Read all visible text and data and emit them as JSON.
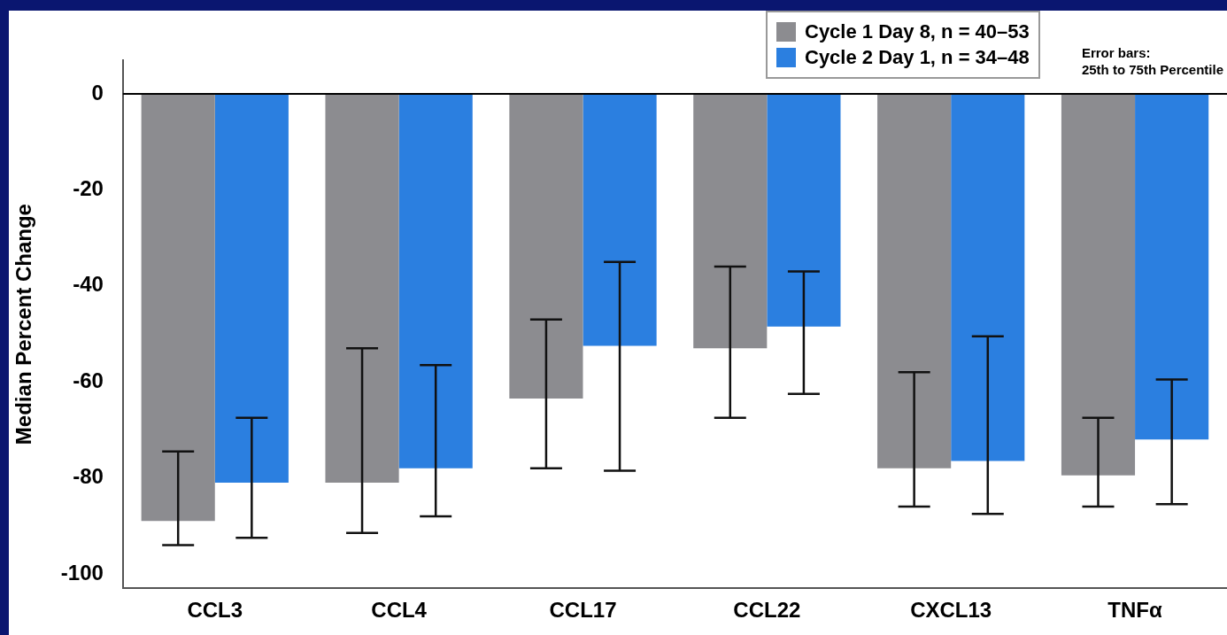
{
  "chart_data": {
    "type": "bar",
    "ylabel": "Median Percent Change",
    "categories": [
      "CCL3",
      "CCL4",
      "CCL17",
      "CCL22",
      "CXCL13",
      "TNFα"
    ],
    "series": [
      {
        "name": "Cycle 1 Day 8, n = 40–53",
        "color": "#8c8c90",
        "values": [
          -89,
          -81,
          -63.5,
          -53,
          -78,
          -79.5
        ],
        "errors": [
          [
            -94,
            -74.5
          ],
          [
            -91.5,
            -53
          ],
          [
            -78,
            -47
          ],
          [
            -67.5,
            -36
          ],
          [
            -86,
            -58
          ],
          [
            -86,
            -67.5
          ]
        ]
      },
      {
        "name": "Cycle 2 Day 1, n = 34–48",
        "color": "#2b7fe0",
        "values": [
          -81,
          -78,
          -52.5,
          -48.5,
          -76.5,
          -72
        ],
        "errors": [
          [
            -92.5,
            -67.5
          ],
          [
            -88,
            -56.5
          ],
          [
            -78.5,
            -35
          ],
          [
            -62.5,
            -37
          ],
          [
            -87.5,
            -50.5
          ],
          [
            -85.5,
            -59.5
          ]
        ]
      }
    ],
    "ylim": [
      -103,
      7
    ],
    "yticks": [
      0,
      -20,
      -40,
      -60,
      -80,
      -100
    ],
    "grid": false,
    "legend": "top right",
    "ref_lines": [
      {
        "axis": "y",
        "value": 0
      }
    ],
    "annotations": [
      "Error bars:",
      "25th to 75th Percentile"
    ]
  }
}
